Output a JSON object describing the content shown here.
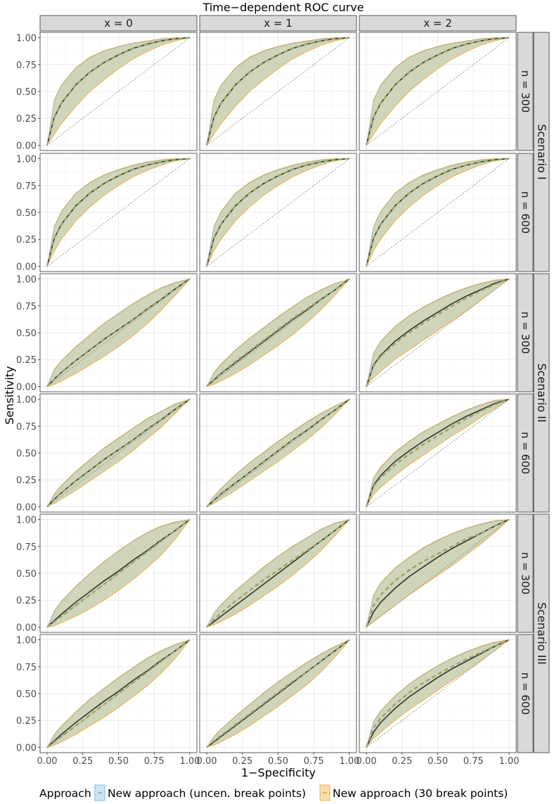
{
  "title": "Time−dependent ROC curve",
  "xlabel": "1−Specificity",
  "ylabel": "Sensitivity",
  "column_strips": [
    "x =  0",
    "x =  1",
    "x =  2"
  ],
  "row_strips": [
    "n = 300",
    "n = 600",
    "n = 300",
    "n = 600",
    "n = 300",
    "n = 600"
  ],
  "scenario_strips": [
    "Scenario I",
    "Scenario II",
    "Scenario III"
  ],
  "legend": {
    "title": "Approach",
    "items": [
      {
        "label": "New approach (uncen. break points)",
        "color": "#6baed6",
        "fill": "#cfe3f0"
      },
      {
        "label": "New approach (30 break points)",
        "color": "#f0a01e",
        "fill": "#f6deb0"
      }
    ]
  },
  "colors": {
    "band_fill": "#c8ccab",
    "band_edge_blue": "#6baed6",
    "band_edge_orange": "#f0a01e",
    "true_curve": "#333333",
    "dashed_estimate": "#9aa46a",
    "diagonal": "#888888",
    "strip_bg": "#d9d9d9",
    "grid": "#ebebeb"
  },
  "chart_data": {
    "type": "line",
    "facets": "rows = scenario × sample size n, columns = covariate x",
    "xlim": [
      0,
      1
    ],
    "ylim": [
      0,
      1
    ],
    "ticks": [
      0,
      0.25,
      0.5,
      0.75,
      1
    ],
    "x_tick_labels": [
      "0.00",
      "0.25",
      "0.50",
      "0.75",
      "1.00"
    ],
    "y_tick_labels": [
      "0.00",
      "0.25",
      "0.50",
      "0.75",
      "1.00"
    ],
    "grid": true,
    "legend_position": "bottom",
    "reference_line": "diagonal y = x (dotted)",
    "x": [
      0,
      0.05,
      0.1,
      0.2,
      0.3,
      0.4,
      0.5,
      0.6,
      0.7,
      0.8,
      0.9,
      1
    ],
    "panels": [
      {
        "row": 0,
        "col": 0,
        "true": [
          0,
          0.26,
          0.39,
          0.56,
          0.68,
          0.77,
          0.84,
          0.9,
          0.94,
          0.97,
          0.99,
          1
        ],
        "estimate": [
          0,
          0.26,
          0.39,
          0.56,
          0.68,
          0.77,
          0.84,
          0.9,
          0.94,
          0.97,
          0.99,
          1
        ],
        "lower": [
          0,
          0.1,
          0.2,
          0.36,
          0.5,
          0.61,
          0.71,
          0.8,
          0.87,
          0.93,
          0.97,
          1
        ],
        "upper": [
          0,
          0.42,
          0.56,
          0.72,
          0.82,
          0.88,
          0.92,
          0.95,
          0.97,
          0.99,
          1,
          1
        ]
      },
      {
        "row": 0,
        "col": 1,
        "true": [
          0,
          0.26,
          0.39,
          0.56,
          0.68,
          0.77,
          0.84,
          0.9,
          0.94,
          0.97,
          0.99,
          1
        ],
        "estimate": [
          0,
          0.26,
          0.39,
          0.56,
          0.68,
          0.77,
          0.84,
          0.9,
          0.94,
          0.97,
          0.99,
          1
        ],
        "lower": [
          0,
          0.1,
          0.2,
          0.36,
          0.5,
          0.61,
          0.71,
          0.8,
          0.87,
          0.93,
          0.97,
          1
        ],
        "upper": [
          0,
          0.42,
          0.56,
          0.72,
          0.82,
          0.88,
          0.92,
          0.95,
          0.97,
          0.99,
          1,
          1
        ]
      },
      {
        "row": 0,
        "col": 2,
        "true": [
          0,
          0.26,
          0.39,
          0.56,
          0.68,
          0.77,
          0.84,
          0.9,
          0.94,
          0.97,
          0.99,
          1
        ],
        "estimate": [
          0,
          0.26,
          0.39,
          0.56,
          0.68,
          0.77,
          0.84,
          0.9,
          0.94,
          0.97,
          0.99,
          1
        ],
        "lower": [
          0,
          0.1,
          0.2,
          0.36,
          0.5,
          0.61,
          0.71,
          0.8,
          0.87,
          0.93,
          0.97,
          1
        ],
        "upper": [
          0,
          0.42,
          0.56,
          0.72,
          0.82,
          0.88,
          0.92,
          0.95,
          0.97,
          0.99,
          1,
          1
        ]
      },
      {
        "row": 1,
        "col": 0,
        "true": [
          0,
          0.26,
          0.39,
          0.56,
          0.68,
          0.77,
          0.84,
          0.9,
          0.94,
          0.97,
          0.99,
          1
        ],
        "estimate": [
          0,
          0.26,
          0.39,
          0.56,
          0.68,
          0.77,
          0.84,
          0.9,
          0.94,
          0.97,
          0.99,
          1
        ],
        "lower": [
          0,
          0.14,
          0.25,
          0.42,
          0.55,
          0.66,
          0.75,
          0.83,
          0.89,
          0.94,
          0.98,
          1
        ],
        "upper": [
          0,
          0.37,
          0.51,
          0.68,
          0.78,
          0.85,
          0.9,
          0.94,
          0.97,
          0.99,
          1,
          1
        ]
      },
      {
        "row": 1,
        "col": 1,
        "true": [
          0,
          0.26,
          0.39,
          0.56,
          0.68,
          0.77,
          0.84,
          0.9,
          0.94,
          0.97,
          0.99,
          1
        ],
        "estimate": [
          0,
          0.26,
          0.39,
          0.56,
          0.68,
          0.77,
          0.84,
          0.9,
          0.94,
          0.97,
          0.99,
          1
        ],
        "lower": [
          0,
          0.14,
          0.25,
          0.42,
          0.55,
          0.66,
          0.75,
          0.83,
          0.89,
          0.94,
          0.98,
          1
        ],
        "upper": [
          0,
          0.37,
          0.51,
          0.68,
          0.78,
          0.85,
          0.9,
          0.94,
          0.97,
          0.99,
          1,
          1
        ]
      },
      {
        "row": 1,
        "col": 2,
        "true": [
          0,
          0.26,
          0.39,
          0.56,
          0.68,
          0.77,
          0.84,
          0.9,
          0.94,
          0.97,
          0.99,
          1
        ],
        "estimate": [
          0,
          0.26,
          0.39,
          0.56,
          0.68,
          0.77,
          0.84,
          0.9,
          0.94,
          0.97,
          0.99,
          1
        ],
        "lower": [
          0,
          0.14,
          0.25,
          0.42,
          0.55,
          0.66,
          0.75,
          0.83,
          0.89,
          0.94,
          0.98,
          1
        ],
        "upper": [
          0,
          0.37,
          0.51,
          0.68,
          0.78,
          0.85,
          0.9,
          0.94,
          0.97,
          0.99,
          1,
          1
        ]
      },
      {
        "row": 2,
        "col": 0,
        "true": [
          0,
          0.07,
          0.13,
          0.24,
          0.34,
          0.44,
          0.53,
          0.62,
          0.72,
          0.81,
          0.91,
          1
        ],
        "estimate": [
          0,
          0.07,
          0.13,
          0.24,
          0.34,
          0.44,
          0.53,
          0.62,
          0.72,
          0.81,
          0.91,
          1
        ],
        "lower": [
          0,
          0.02,
          0.05,
          0.12,
          0.2,
          0.28,
          0.37,
          0.47,
          0.58,
          0.71,
          0.85,
          1
        ],
        "upper": [
          0,
          0.16,
          0.24,
          0.37,
          0.48,
          0.59,
          0.68,
          0.77,
          0.85,
          0.92,
          0.97,
          1
        ]
      },
      {
        "row": 2,
        "col": 1,
        "true": [
          0,
          0.06,
          0.12,
          0.22,
          0.32,
          0.42,
          0.52,
          0.62,
          0.71,
          0.81,
          0.9,
          1
        ],
        "estimate": [
          0,
          0.065,
          0.125,
          0.23,
          0.33,
          0.43,
          0.53,
          0.63,
          0.72,
          0.81,
          0.9,
          1
        ],
        "lower": [
          0,
          0.02,
          0.05,
          0.12,
          0.2,
          0.29,
          0.38,
          0.48,
          0.59,
          0.71,
          0.85,
          1
        ],
        "upper": [
          0,
          0.13,
          0.21,
          0.34,
          0.45,
          0.55,
          0.65,
          0.74,
          0.83,
          0.9,
          0.96,
          1
        ]
      },
      {
        "row": 2,
        "col": 2,
        "true": [
          0,
          0.2,
          0.29,
          0.42,
          0.52,
          0.61,
          0.69,
          0.77,
          0.84,
          0.9,
          0.96,
          1
        ],
        "estimate": [
          0,
          0.19,
          0.28,
          0.4,
          0.5,
          0.59,
          0.67,
          0.75,
          0.82,
          0.89,
          0.95,
          1
        ],
        "lower": [
          0,
          0.08,
          0.14,
          0.25,
          0.34,
          0.43,
          0.52,
          0.61,
          0.7,
          0.8,
          0.9,
          1
        ],
        "upper": [
          0,
          0.31,
          0.42,
          0.56,
          0.66,
          0.74,
          0.81,
          0.87,
          0.92,
          0.96,
          0.99,
          1
        ]
      },
      {
        "row": 3,
        "col": 0,
        "true": [
          0,
          0.07,
          0.13,
          0.24,
          0.34,
          0.44,
          0.53,
          0.62,
          0.72,
          0.81,
          0.91,
          1
        ],
        "estimate": [
          0,
          0.07,
          0.13,
          0.24,
          0.34,
          0.44,
          0.53,
          0.62,
          0.72,
          0.81,
          0.91,
          1
        ],
        "lower": [
          0,
          0.03,
          0.07,
          0.15,
          0.24,
          0.33,
          0.42,
          0.52,
          0.63,
          0.74,
          0.87,
          1
        ],
        "upper": [
          0,
          0.12,
          0.2,
          0.33,
          0.44,
          0.55,
          0.64,
          0.73,
          0.82,
          0.89,
          0.96,
          1
        ]
      },
      {
        "row": 3,
        "col": 1,
        "true": [
          0,
          0.06,
          0.12,
          0.22,
          0.32,
          0.42,
          0.52,
          0.62,
          0.71,
          0.81,
          0.9,
          1
        ],
        "estimate": [
          0,
          0.06,
          0.12,
          0.22,
          0.32,
          0.42,
          0.52,
          0.62,
          0.71,
          0.81,
          0.9,
          1
        ],
        "lower": [
          0,
          0.03,
          0.07,
          0.15,
          0.24,
          0.33,
          0.42,
          0.52,
          0.62,
          0.73,
          0.86,
          1
        ],
        "upper": [
          0,
          0.1,
          0.17,
          0.3,
          0.41,
          0.51,
          0.61,
          0.7,
          0.79,
          0.87,
          0.94,
          1
        ]
      },
      {
        "row": 3,
        "col": 2,
        "true": [
          0,
          0.2,
          0.29,
          0.42,
          0.52,
          0.61,
          0.69,
          0.77,
          0.84,
          0.9,
          0.96,
          1
        ],
        "estimate": [
          0,
          0.19,
          0.27,
          0.39,
          0.49,
          0.58,
          0.66,
          0.74,
          0.82,
          0.89,
          0.95,
          1
        ],
        "lower": [
          0,
          0.11,
          0.18,
          0.29,
          0.39,
          0.48,
          0.57,
          0.66,
          0.74,
          0.83,
          0.91,
          1
        ],
        "upper": [
          0,
          0.27,
          0.37,
          0.51,
          0.61,
          0.7,
          0.77,
          0.84,
          0.9,
          0.95,
          0.99,
          1
        ]
      },
      {
        "row": 4,
        "col": 0,
        "true": [
          0,
          0.06,
          0.12,
          0.23,
          0.33,
          0.43,
          0.52,
          0.62,
          0.71,
          0.81,
          0.9,
          1
        ],
        "estimate": [
          0,
          0.05,
          0.1,
          0.2,
          0.3,
          0.4,
          0.5,
          0.6,
          0.7,
          0.8,
          0.9,
          1
        ],
        "lower": [
          0,
          0.01,
          0.04,
          0.1,
          0.17,
          0.25,
          0.34,
          0.44,
          0.55,
          0.67,
          0.82,
          1
        ],
        "upper": [
          0,
          0.15,
          0.24,
          0.38,
          0.5,
          0.61,
          0.71,
          0.8,
          0.88,
          0.94,
          0.98,
          1
        ]
      },
      {
        "row": 4,
        "col": 1,
        "true": [
          0,
          0.05,
          0.1,
          0.2,
          0.3,
          0.4,
          0.5,
          0.6,
          0.7,
          0.8,
          0.9,
          1
        ],
        "estimate": [
          0,
          0.07,
          0.13,
          0.24,
          0.34,
          0.44,
          0.53,
          0.62,
          0.71,
          0.8,
          0.9,
          1
        ],
        "lower": [
          0,
          0.02,
          0.05,
          0.12,
          0.2,
          0.29,
          0.38,
          0.48,
          0.59,
          0.71,
          0.85,
          1
        ],
        "upper": [
          0,
          0.13,
          0.21,
          0.34,
          0.45,
          0.56,
          0.66,
          0.75,
          0.83,
          0.91,
          0.97,
          1
        ]
      },
      {
        "row": 4,
        "col": 2,
        "true": [
          0,
          0.14,
          0.23,
          0.36,
          0.47,
          0.56,
          0.65,
          0.73,
          0.8,
          0.87,
          0.94,
          1
        ],
        "estimate": [
          0,
          0.2,
          0.3,
          0.43,
          0.53,
          0.61,
          0.68,
          0.75,
          0.82,
          0.87,
          0.94,
          1
        ],
        "lower": [
          0,
          0.05,
          0.1,
          0.2,
          0.3,
          0.39,
          0.48,
          0.57,
          0.67,
          0.77,
          0.88,
          1
        ],
        "upper": [
          0,
          0.3,
          0.41,
          0.55,
          0.65,
          0.74,
          0.81,
          0.87,
          0.92,
          0.96,
          0.99,
          1
        ]
      },
      {
        "row": 5,
        "col": 0,
        "true": [
          0,
          0.06,
          0.12,
          0.23,
          0.33,
          0.43,
          0.52,
          0.62,
          0.71,
          0.81,
          0.9,
          1
        ],
        "estimate": [
          0,
          0.05,
          0.1,
          0.2,
          0.3,
          0.4,
          0.5,
          0.6,
          0.7,
          0.8,
          0.9,
          1
        ],
        "lower": [
          0,
          0.02,
          0.05,
          0.12,
          0.2,
          0.28,
          0.37,
          0.47,
          0.57,
          0.69,
          0.83,
          1
        ],
        "upper": [
          0,
          0.12,
          0.2,
          0.33,
          0.45,
          0.55,
          0.65,
          0.74,
          0.83,
          0.9,
          0.96,
          1
        ]
      },
      {
        "row": 5,
        "col": 1,
        "true": [
          0,
          0.05,
          0.1,
          0.2,
          0.3,
          0.4,
          0.5,
          0.6,
          0.7,
          0.8,
          0.9,
          1
        ],
        "estimate": [
          0,
          0.06,
          0.11,
          0.21,
          0.31,
          0.41,
          0.51,
          0.61,
          0.7,
          0.8,
          0.9,
          1
        ],
        "lower": [
          0,
          0.02,
          0.05,
          0.12,
          0.2,
          0.29,
          0.38,
          0.48,
          0.58,
          0.7,
          0.84,
          1
        ],
        "upper": [
          0,
          0.1,
          0.17,
          0.29,
          0.4,
          0.51,
          0.61,
          0.7,
          0.79,
          0.87,
          0.94,
          1
        ]
      },
      {
        "row": 5,
        "col": 2,
        "true": [
          0,
          0.14,
          0.23,
          0.36,
          0.47,
          0.56,
          0.65,
          0.73,
          0.8,
          0.87,
          0.94,
          1
        ],
        "estimate": [
          0,
          0.18,
          0.27,
          0.4,
          0.51,
          0.6,
          0.68,
          0.75,
          0.82,
          0.88,
          0.94,
          1
        ],
        "lower": [
          0,
          0.08,
          0.14,
          0.25,
          0.35,
          0.44,
          0.53,
          0.62,
          0.71,
          0.8,
          0.9,
          1
        ],
        "upper": [
          0,
          0.24,
          0.34,
          0.48,
          0.59,
          0.68,
          0.76,
          0.83,
          0.89,
          0.94,
          0.98,
          1
        ]
      }
    ]
  }
}
